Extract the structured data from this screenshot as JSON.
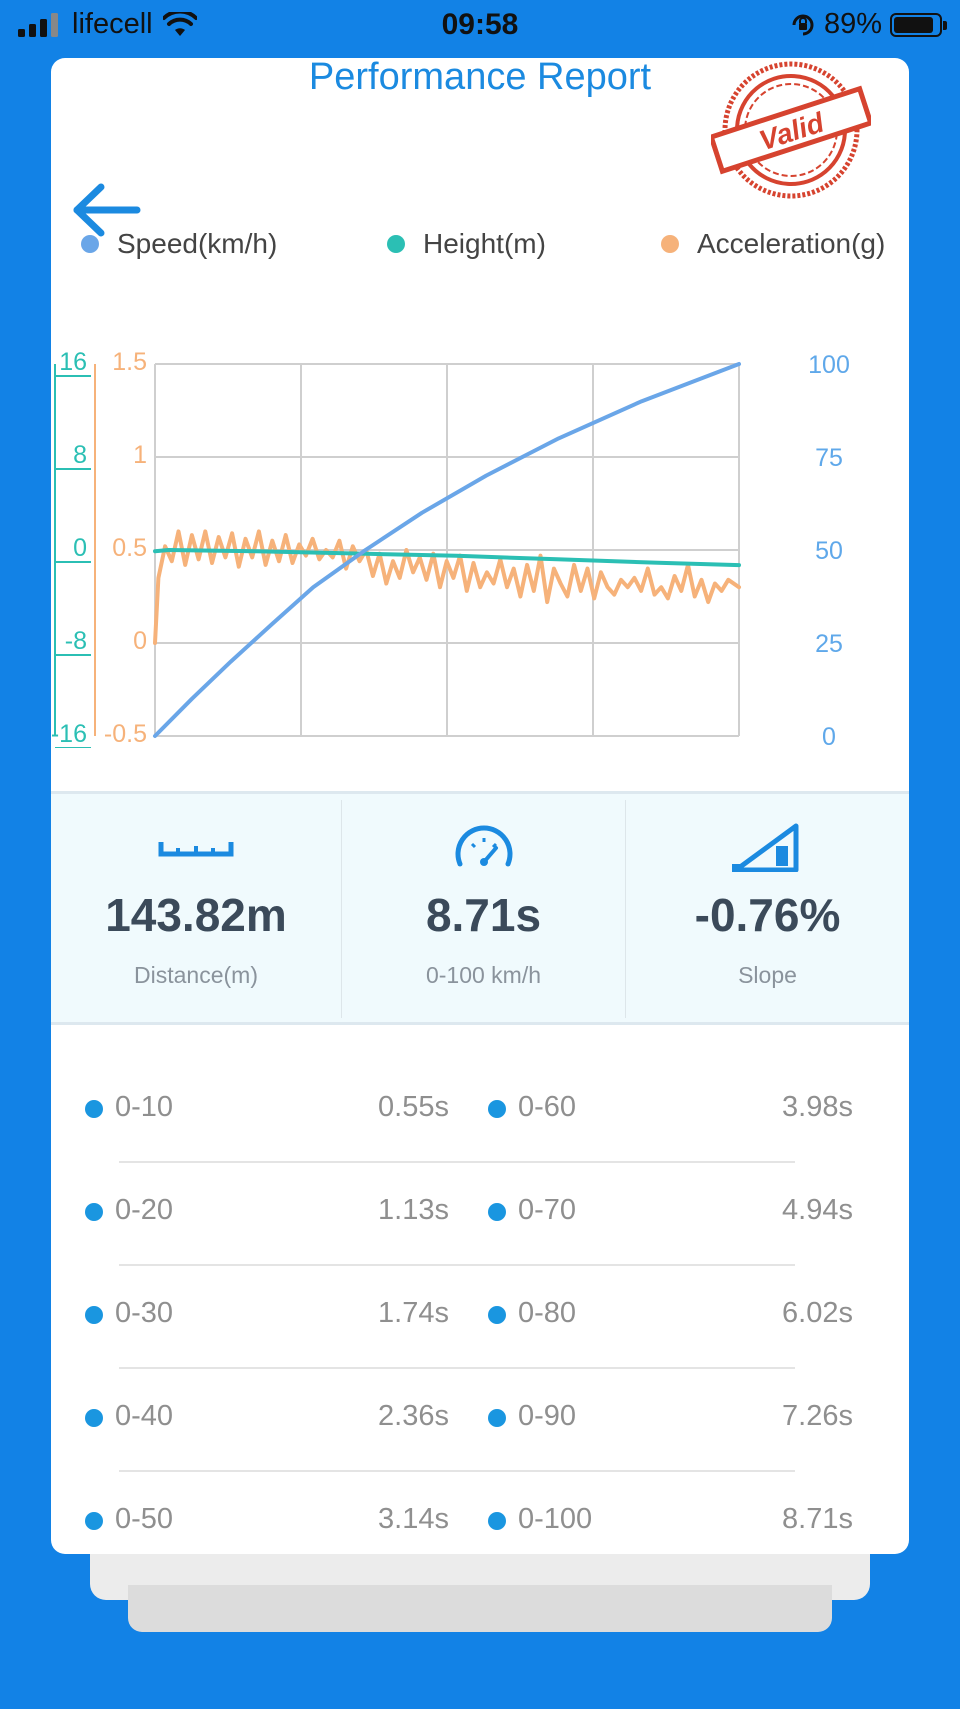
{
  "status_bar": {
    "carrier": "lifecell",
    "time": "09:58",
    "battery_percent": "89%",
    "battery_level": 0.89
  },
  "header": {
    "title": "Performance Report",
    "stamp_text": "Valid"
  },
  "legend": [
    {
      "label": "Speed(km/h)",
      "color": "#6aa6e8"
    },
    {
      "label": "Height(m)",
      "color": "#2bbfb4"
    },
    {
      "label": "Acceleration(g)",
      "color": "#f6b27a"
    }
  ],
  "chart_data": {
    "type": "line",
    "grid": true,
    "x_range": [
      0,
      8.71
    ],
    "axes": {
      "height_left": {
        "ticks": [
          "16",
          "8",
          "0",
          "-8",
          "-16"
        ],
        "range": [
          -16,
          16
        ],
        "color": "#2bbfb4"
      },
      "accel_left": {
        "ticks": [
          "1.5",
          "1",
          "0.5",
          "0",
          "-0.5"
        ],
        "range": [
          -0.5,
          1.5
        ],
        "color": "#f6b27a"
      },
      "speed_right": {
        "ticks": [
          "100",
          "75",
          "50",
          "25",
          "0"
        ],
        "range": [
          0,
          100
        ],
        "color": "#5fa8ea"
      }
    },
    "series": [
      {
        "name": "Speed(km/h)",
        "axis": "speed_right",
        "color": "#6aa6e8",
        "x": [
          0,
          0.55,
          1.13,
          1.74,
          2.36,
          3.14,
          3.98,
          4.94,
          6.02,
          7.26,
          8.71
        ],
        "y": [
          0,
          10,
          20,
          30,
          40,
          50,
          60,
          70,
          80,
          90,
          100
        ]
      },
      {
        "name": "Height(m)",
        "axis": "height_left",
        "color": "#2bbfb4",
        "x": [
          0,
          0.2,
          1.5,
          3.0,
          4.5,
          6.0,
          7.5,
          8.71
        ],
        "y": [
          -0.1,
          0.0,
          -0.1,
          -0.3,
          -0.5,
          -0.8,
          -1.1,
          -1.3
        ]
      },
      {
        "name": "Acceleration(g)",
        "axis": "accel_left",
        "color": "#f6b27a",
        "x": [
          0,
          0.05,
          0.15,
          0.25,
          0.35,
          0.45,
          0.55,
          0.65,
          0.75,
          0.85,
          0.95,
          1.05,
          1.15,
          1.25,
          1.35,
          1.45,
          1.55,
          1.65,
          1.75,
          1.85,
          1.95,
          2.05,
          2.15,
          2.25,
          2.35,
          2.45,
          2.55,
          2.65,
          2.75,
          2.85,
          2.95,
          3.05,
          3.15,
          3.25,
          3.35,
          3.45,
          3.55,
          3.65,
          3.75,
          3.85,
          3.95,
          4.05,
          4.15,
          4.25,
          4.35,
          4.45,
          4.55,
          4.65,
          4.75,
          4.85,
          4.95,
          5.05,
          5.15,
          5.25,
          5.35,
          5.45,
          5.55,
          5.65,
          5.75,
          5.85,
          5.95,
          6.05,
          6.15,
          6.25,
          6.35,
          6.45,
          6.55,
          6.65,
          6.75,
          6.85,
          6.95,
          7.05,
          7.15,
          7.25,
          7.35,
          7.45,
          7.55,
          7.65,
          7.75,
          7.85,
          7.95,
          8.05,
          8.15,
          8.25,
          8.35,
          8.45,
          8.55,
          8.71
        ],
        "y": [
          0.0,
          0.35,
          0.52,
          0.44,
          0.6,
          0.42,
          0.58,
          0.45,
          0.6,
          0.43,
          0.57,
          0.46,
          0.59,
          0.41,
          0.56,
          0.46,
          0.6,
          0.42,
          0.55,
          0.44,
          0.58,
          0.43,
          0.53,
          0.47,
          0.56,
          0.45,
          0.5,
          0.46,
          0.55,
          0.4,
          0.52,
          0.44,
          0.5,
          0.36,
          0.48,
          0.32,
          0.44,
          0.35,
          0.5,
          0.38,
          0.46,
          0.34,
          0.48,
          0.3,
          0.44,
          0.35,
          0.47,
          0.28,
          0.43,
          0.3,
          0.38,
          0.32,
          0.45,
          0.3,
          0.4,
          0.25,
          0.42,
          0.28,
          0.47,
          0.22,
          0.4,
          0.32,
          0.25,
          0.42,
          0.28,
          0.4,
          0.24,
          0.38,
          0.3,
          0.26,
          0.34,
          0.3,
          0.35,
          0.28,
          0.4,
          0.26,
          0.3,
          0.24,
          0.36,
          0.28,
          0.42,
          0.25,
          0.34,
          0.22,
          0.32,
          0.28,
          0.34,
          0.3
        ]
      }
    ]
  },
  "stats": [
    {
      "icon": "ruler-icon",
      "value": "143.82m",
      "label": "Distance(m)"
    },
    {
      "icon": "speedometer-icon",
      "value": "8.71s",
      "label": "0-100 km/h"
    },
    {
      "icon": "slope-icon",
      "value": "-0.76%",
      "label": "Slope"
    }
  ],
  "splits": [
    {
      "left_label": "0-10",
      "left_value": "0.55s",
      "right_label": "0-60",
      "right_value": "3.98s"
    },
    {
      "left_label": "0-20",
      "left_value": "1.13s",
      "right_label": "0-70",
      "right_value": "4.94s"
    },
    {
      "left_label": "0-30",
      "left_value": "1.74s",
      "right_label": "0-80",
      "right_value": "6.02s"
    },
    {
      "left_label": "0-40",
      "left_value": "2.36s",
      "right_label": "0-90",
      "right_value": "7.26s"
    },
    {
      "left_label": "0-50",
      "left_value": "3.14s",
      "right_label": "0-100",
      "right_value": "8.71s"
    }
  ]
}
